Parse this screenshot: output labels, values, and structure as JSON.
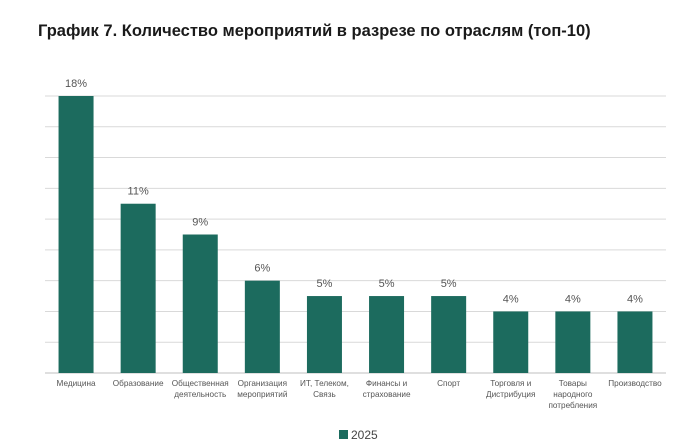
{
  "chart_data": {
    "type": "bar",
    "title": "График 7. Количество мероприятий в разрезе по отраслям (топ-10)",
    "categories": [
      [
        "Медицина"
      ],
      [
        "Образование"
      ],
      [
        "Общественная",
        "деятельность"
      ],
      [
        "Организация",
        "мероприятий"
      ],
      [
        "ИТ, Телеком,",
        "Связь"
      ],
      [
        "Финансы и",
        "страхование"
      ],
      [
        "Спорт"
      ],
      [
        "Торговля и",
        "Дистрибуция"
      ],
      [
        "Товары",
        "народного",
        "потребления"
      ],
      [
        "Производство"
      ]
    ],
    "series": [
      {
        "name": "2025",
        "values": [
          18,
          11,
          9,
          6,
          5,
          5,
          5,
          4,
          4,
          4
        ],
        "labels": [
          "18%",
          "11%",
          "9%",
          "6%",
          "5%",
          "5%",
          "5%",
          "4%",
          "4%",
          "4%"
        ],
        "color": "#1c6b5e"
      }
    ],
    "ylim": [
      0,
      18
    ],
    "grid": true,
    "legend": "bottom-center"
  },
  "colors": {
    "bar": "#1c6b5e",
    "grid": "#d9d9d9",
    "axis": "#bfbfbf"
  }
}
